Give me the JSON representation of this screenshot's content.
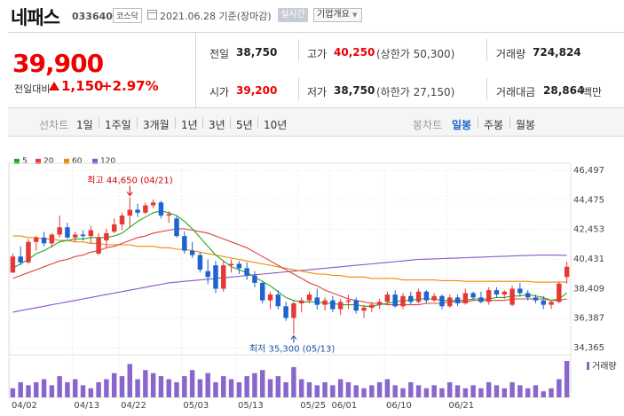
{
  "header": {
    "name": "네패스",
    "code": "033640",
    "market": "코스닥",
    "date": "2021.06.28 기준(장마감)",
    "live_button": "실시간",
    "info_button": "기업개요"
  },
  "summary": {
    "price": "39,900",
    "change_label": "전일대비",
    "change_value": "1,150",
    "change_pct": "+2.97%",
    "prev_label": "전일",
    "prev_value": "38,750",
    "open_label": "시가",
    "open_value": "39,200",
    "high_label": "고가",
    "high_value": "40,250",
    "high_limit": "(상한가 50,300)",
    "low_label": "저가",
    "low_value": "38,750",
    "low_limit": "(하한가 27,150)",
    "volume_label": "거래량",
    "volume_value": "724,824",
    "amount_label": "거래대금",
    "amount_value": "28,864",
    "amount_unit": "백만"
  },
  "periods": {
    "label": "선차트",
    "items": [
      "1일",
      "1주일",
      "3개월",
      "1년",
      "3년",
      "5년",
      "10년"
    ],
    "candle_label": "봉차트",
    "candle_items": [
      "일봉",
      "주봉",
      "월봉"
    ],
    "active_candle": "일봉"
  },
  "legend": [
    {
      "label": "5",
      "color": "#22aa22"
    },
    {
      "label": "20",
      "color": "#e04040"
    },
    {
      "label": "60",
      "color": "#ee8a00"
    },
    {
      "label": "120",
      "color": "#8855cc"
    }
  ],
  "chart_data": {
    "type": "candlestick",
    "y_ticks": [
      "46,497",
      "44,475",
      "42,453",
      "40,431",
      "38,409",
      "36,387",
      "34,365"
    ],
    "ylim": [
      34365,
      46497
    ],
    "x_labels": [
      "04/02",
      "04/13",
      "04/22",
      "05/03",
      "05/13",
      "05/25",
      "06/01",
      "06/10",
      "06/21"
    ],
    "volume_label": "거래량",
    "high_annotation": "최고 44,650 (04/21)",
    "low_annotation": "최저 35,300 (05/13)",
    "candles": [
      [
        39500,
        40800,
        39500,
        40600
      ],
      [
        40600,
        41300,
        40000,
        40200
      ],
      [
        40200,
        41800,
        40100,
        41600
      ],
      [
        41600,
        42000,
        41000,
        41900
      ],
      [
        41900,
        42300,
        41300,
        41500
      ],
      [
        41500,
        42200,
        41200,
        42100
      ],
      [
        42100,
        43400,
        41900,
        42600
      ],
      [
        42600,
        42900,
        41800,
        41900
      ],
      [
        41900,
        42300,
        41600,
        42100
      ],
      [
        42100,
        42400,
        41700,
        42000
      ],
      [
        42000,
        42700,
        41500,
        42400
      ],
      [
        40800,
        42200,
        40700,
        41900
      ],
      [
        41700,
        42500,
        41200,
        42200
      ],
      [
        42300,
        43200,
        42200,
        42800
      ],
      [
        42800,
        43600,
        42400,
        43400
      ],
      [
        43400,
        44650,
        42600,
        43800
      ],
      [
        43800,
        44200,
        43300,
        43600
      ],
      [
        43600,
        44300,
        43500,
        44100
      ],
      [
        44100,
        44500,
        43900,
        44300
      ],
      [
        44300,
        44400,
        43200,
        43400
      ],
      [
        43400,
        43700,
        42900,
        43500
      ],
      [
        43200,
        43400,
        41900,
        42000
      ],
      [
        42000,
        42300,
        40800,
        41000
      ],
      [
        41000,
        41600,
        40500,
        40700
      ],
      [
        40700,
        40900,
        39500,
        39700
      ],
      [
        39600,
        40400,
        38700,
        39200
      ],
      [
        40000,
        40300,
        38100,
        38400
      ],
      [
        38400,
        40300,
        38200,
        40000
      ],
      [
        40000,
        40400,
        39500,
        40100
      ],
      [
        40100,
        40300,
        39400,
        39800
      ],
      [
        39800,
        40200,
        39000,
        39300
      ],
      [
        39300,
        39600,
        38500,
        38800
      ],
      [
        38800,
        38900,
        37400,
        37600
      ],
      [
        37600,
        38200,
        37000,
        38000
      ],
      [
        38000,
        38300,
        37000,
        37200
      ],
      [
        37200,
        37500,
        36200,
        36400
      ],
      [
        36400,
        37600,
        35300,
        37400
      ],
      [
        37400,
        37800,
        36800,
        37600
      ],
      [
        37600,
        38200,
        37400,
        38000
      ],
      [
        37800,
        38400,
        37000,
        37300
      ],
      [
        37300,
        37800,
        36900,
        37600
      ],
      [
        37600,
        37900,
        36800,
        37000
      ],
      [
        37000,
        37700,
        36600,
        37500
      ],
      [
        37500,
        38000,
        37000,
        37600
      ],
      [
        37600,
        37800,
        36700,
        36900
      ],
      [
        36900,
        37300,
        36400,
        37100
      ],
      [
        37100,
        37500,
        36800,
        37300
      ],
      [
        37300,
        37700,
        37000,
        37500
      ],
      [
        37500,
        38200,
        37300,
        38000
      ],
      [
        38000,
        38300,
        37100,
        37200
      ],
      [
        37200,
        38100,
        37000,
        37900
      ],
      [
        37900,
        38200,
        37300,
        37500
      ],
      [
        37500,
        38400,
        37400,
        38200
      ],
      [
        38200,
        38300,
        37400,
        37600
      ],
      [
        37600,
        38100,
        37500,
        37900
      ],
      [
        37900,
        38000,
        37000,
        37200
      ],
      [
        37200,
        38000,
        37100,
        37800
      ],
      [
        37800,
        38000,
        37200,
        37400
      ],
      [
        37400,
        38400,
        37300,
        38100
      ],
      [
        38100,
        38200,
        37600,
        37800
      ],
      [
        37800,
        38200,
        37400,
        37500
      ],
      [
        37500,
        38500,
        37300,
        38300
      ],
      [
        38300,
        38500,
        37800,
        38000
      ],
      [
        38000,
        38300,
        37700,
        38200
      ],
      [
        37300,
        38600,
        37200,
        38400
      ],
      [
        38400,
        38800,
        37900,
        38100
      ],
      [
        38100,
        38300,
        37600,
        37800
      ],
      [
        37800,
        38000,
        37400,
        37600
      ],
      [
        37600,
        37900,
        37000,
        37300
      ],
      [
        37300,
        37600,
        37000,
        37500
      ],
      [
        37500,
        38900,
        37400,
        38750
      ],
      [
        39200,
        40250,
        38750,
        39900
      ]
    ],
    "volumes": [
      3,
      5,
      4,
      5,
      6,
      4,
      7,
      5,
      6,
      4,
      3,
      5,
      6,
      8,
      7,
      11,
      6,
      9,
      8,
      7,
      6,
      5,
      7,
      9,
      6,
      8,
      5,
      7,
      6,
      5,
      7,
      8,
      9,
      6,
      7,
      5,
      10,
      6,
      5,
      4,
      5,
      4,
      6,
      5,
      4,
      3,
      4,
      5,
      6,
      4,
      3,
      5,
      4,
      3,
      4,
      3,
      5,
      4,
      3,
      4,
      3,
      5,
      4,
      3,
      5,
      4,
      3,
      4,
      2,
      3,
      6,
      12
    ],
    "ma5": [
      39800,
      40100,
      40400,
      40800,
      41000,
      41300,
      41600,
      41700,
      41800,
      41800,
      41900,
      41900,
      41900,
      42000,
      42200,
      42600,
      43000,
      43300,
      43600,
      43700,
      43600,
      43400,
      43000,
      42500,
      41900,
      41300,
      40700,
      40300,
      39900,
      39700,
      39500,
      39200,
      38900,
      38600,
      38200,
      37800,
      37600,
      37500,
      37500,
      37500,
      37400,
      37400,
      37300,
      37300,
      37300,
      37200,
      37200,
      37300,
      37400,
      37500,
      37600,
      37600,
      37700,
      37700,
      37700,
      37600,
      37600,
      37600,
      37600,
      37700,
      37700,
      37700,
      37800,
      37800,
      37900,
      37900,
      38000,
      37900,
      37800,
      37600,
      37700,
      38100
    ],
    "ma20": [
      39100,
      39300,
      39500,
      39700,
      39900,
      40100,
      40300,
      40400,
      40600,
      40700,
      40900,
      41000,
      41200,
      41300,
      41500,
      41700,
      41900,
      42000,
      42200,
      42300,
      42400,
      42500,
      42500,
      42400,
      42300,
      42200,
      42000,
      41800,
      41600,
      41400,
      41200,
      40900,
      40600,
      40300,
      40000,
      39700,
      39400,
      39100,
      38800,
      38600,
      38300,
      38100,
      37900,
      37700,
      37600,
      37500,
      37400,
      37400,
      37300,
      37300,
      37300,
      37300,
      37300,
      37400,
      37400,
      37400,
      37500,
      37500,
      37500,
      37600,
      37600,
      37600,
      37600,
      37600,
      37700,
      37700,
      37700,
      37700,
      37700,
      37600,
      37600,
      37700
    ],
    "ma60": [
      42000,
      42000,
      41900,
      41900,
      41800,
      41800,
      41700,
      41700,
      41600,
      41600,
      41500,
      41500,
      41400,
      41400,
      41400,
      41400,
      41300,
      41300,
      41300,
      41200,
      41200,
      41100,
      41100,
      41000,
      40900,
      40800,
      40700,
      40600,
      40500,
      40400,
      40300,
      40200,
      40100,
      40000,
      39900,
      39800,
      39700,
      39600,
      39500,
      39400,
      39400,
      39300,
      39300,
      39200,
      39200,
      39200,
      39100,
      39100,
      39100,
      39100,
      39000,
      39000,
      39000,
      39000,
      39000,
      38950,
      38950,
      38950,
      38900,
      38900,
      38900,
      38900,
      38900,
      38900,
      38900,
      38900,
      38900,
      38850,
      38850,
      38850,
      38850,
      38850
    ],
    "ma120": [
      36800,
      36900,
      37000,
      37100,
      37200,
      37300,
      37400,
      37500,
      37600,
      37700,
      37800,
      37900,
      38000,
      38100,
      38200,
      38300,
      38400,
      38500,
      38600,
      38700,
      38800,
      38850,
      38900,
      38950,
      39000,
      39050,
      39100,
      39150,
      39200,
      39250,
      39300,
      39350,
      39400,
      39450,
      39500,
      39550,
      39600,
      39650,
      39700,
      39750,
      39800,
      39850,
      39900,
      39950,
      40000,
      40050,
      40100,
      40150,
      40200,
      40250,
      40300,
      40350,
      40400,
      40420,
      40440,
      40460,
      40480,
      40500,
      40520,
      40540,
      40560,
      40580,
      40600,
      40620,
      40640,
      40660,
      40680,
      40690,
      40700,
      40700,
      40690,
      40680
    ]
  }
}
